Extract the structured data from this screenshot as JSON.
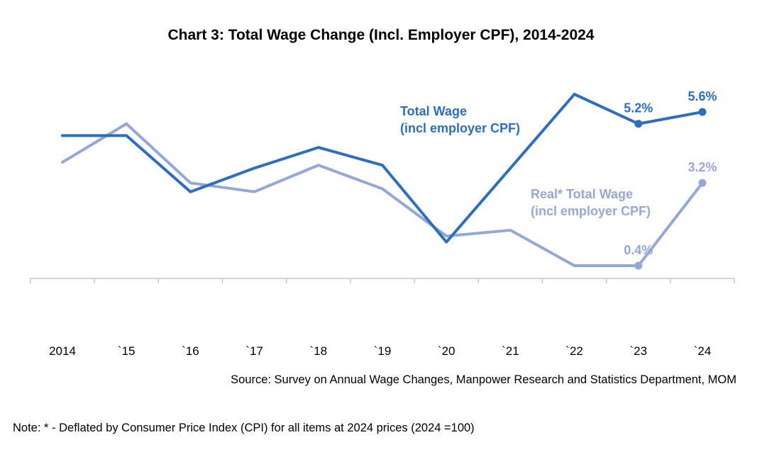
{
  "chart_data": {
    "type": "line",
    "title": "Chart 3: Total Wage Change (Incl. Employer CPF), 2014-2024",
    "categories": [
      "2014",
      "`15",
      "`16",
      "`17",
      "`18",
      "`19",
      "`20",
      "`21",
      "`22",
      "`23",
      "`24"
    ],
    "series": [
      {
        "name_lines": [
          "Total Wage",
          "(incl employer CPF)"
        ],
        "color": "#2E6EBD",
        "values": [
          4.8,
          4.8,
          2.9,
          3.7,
          4.4,
          3.8,
          1.2,
          3.7,
          6.2,
          5.2,
          5.6
        ],
        "labels": {
          "9": "5.2%",
          "10": "5.6%"
        }
      },
      {
        "name_lines": [
          "Real* Total Wage",
          "(incl employer CPF)"
        ],
        "color": "#94A8D8",
        "values": [
          3.9,
          5.2,
          3.2,
          2.9,
          3.8,
          3.0,
          1.4,
          1.6,
          0.4,
          0.4,
          3.2
        ],
        "labels": {
          "9": "0.4%",
          "10": "3.2%"
        }
      }
    ],
    "ylim": [
      -0.5,
      7
    ],
    "xlabel": "",
    "ylabel": "",
    "grid": false,
    "legend": "inline"
  },
  "source": "Source: Survey on Annual Wage Changes, Manpower Research and Statistics Department, MOM",
  "note": "Note: * - Deflated by Consumer Price Index (CPI) for all items at 2024 prices (2024 =100)"
}
